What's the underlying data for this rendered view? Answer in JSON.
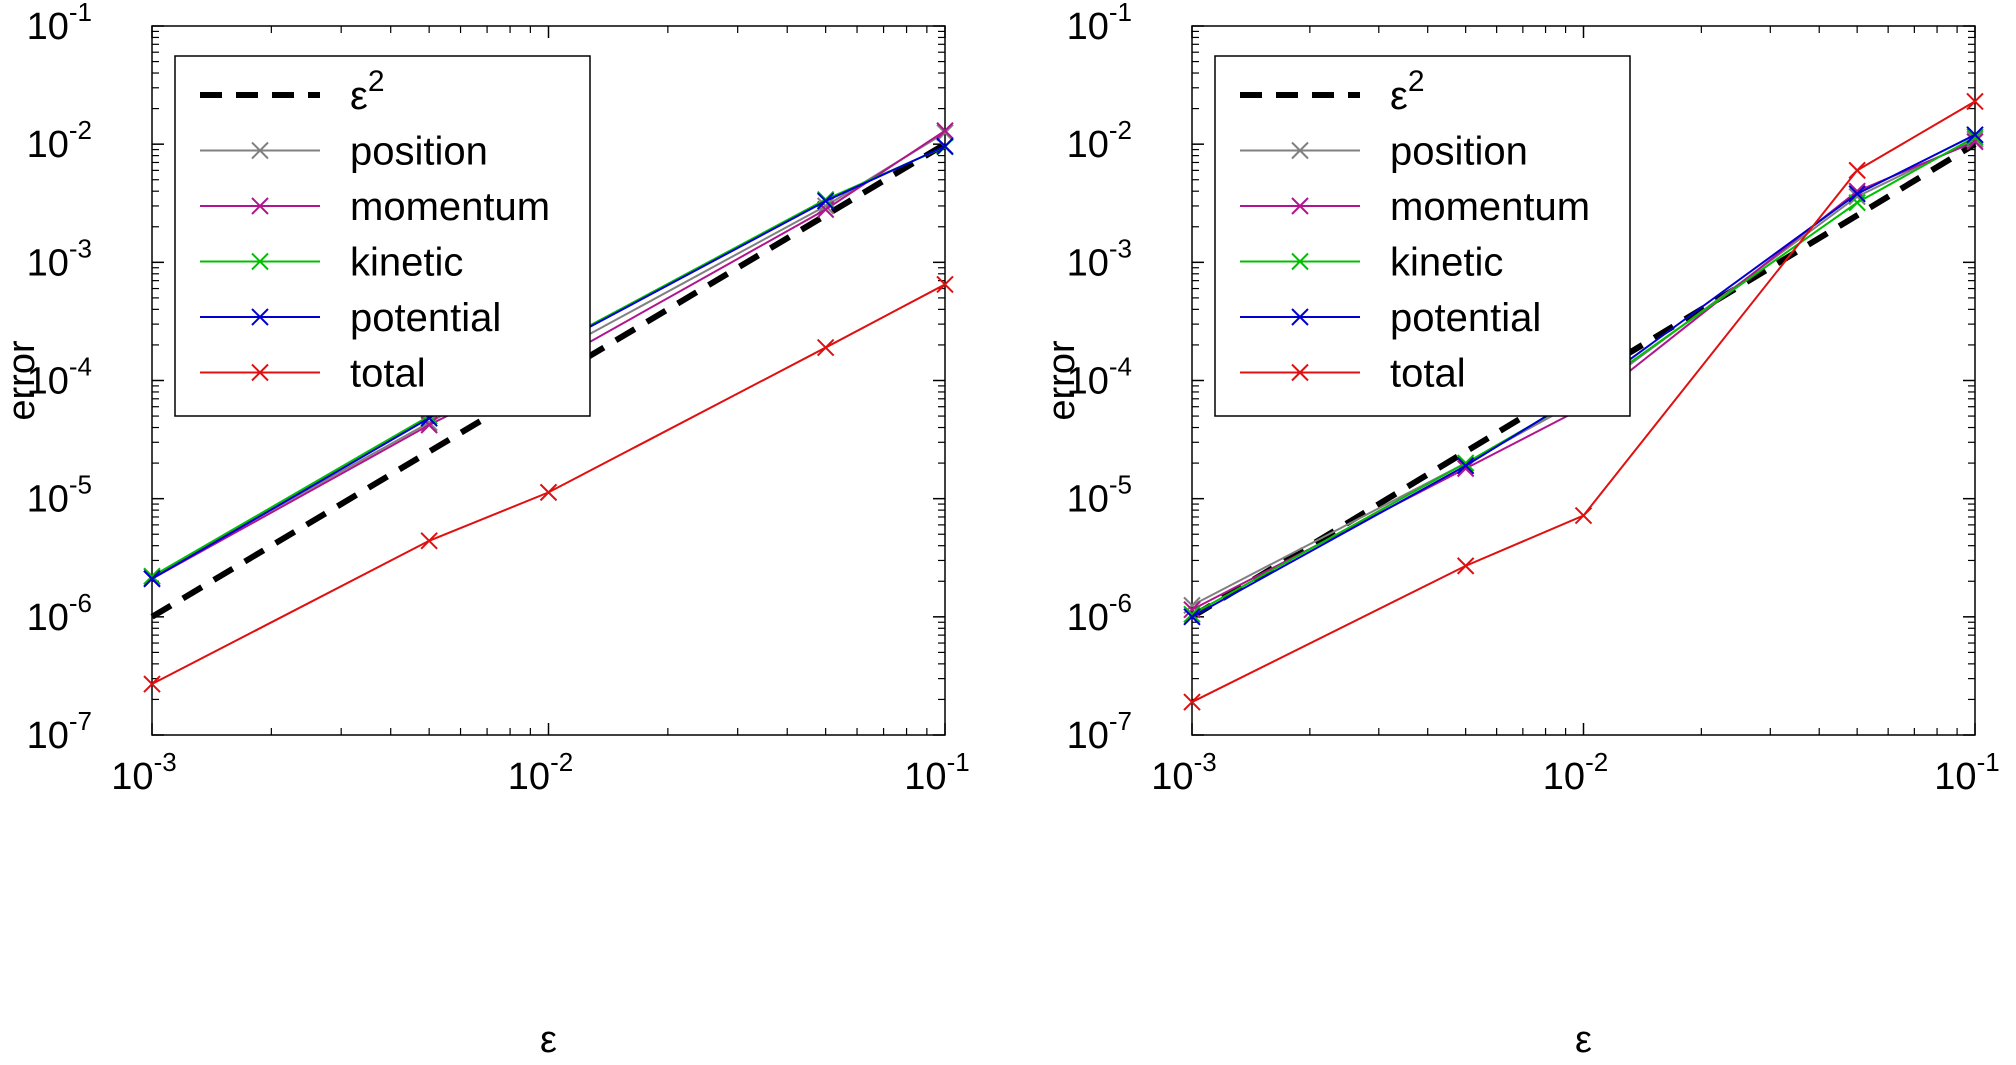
{
  "chart_data": [
    {
      "type": "line",
      "xscale": "log",
      "yscale": "log",
      "xlabel": "ε",
      "ylabel": "error",
      "xlim": [
        0.001,
        0.1
      ],
      "ylim": [
        1e-07,
        0.1
      ],
      "xticks": [
        {
          "base": "10",
          "exp": "-3"
        },
        {
          "base": "10",
          "exp": "-2"
        },
        {
          "base": "10",
          "exp": "-1"
        }
      ],
      "yticks": [
        {
          "base": "10",
          "exp": "-7"
        },
        {
          "base": "10",
          "exp": "-6"
        },
        {
          "base": "10",
          "exp": "-5"
        },
        {
          "base": "10",
          "exp": "-4"
        },
        {
          "base": "10",
          "exp": "-3"
        },
        {
          "base": "10",
          "exp": "-2"
        },
        {
          "base": "10",
          "exp": "-1"
        }
      ],
      "legend_position": "top-left",
      "x": [
        0.001,
        0.005,
        0.01,
        0.05,
        0.1
      ],
      "series": [
        {
          "name": "ε",
          "name_sup": "2",
          "color": "#000000",
          "style": "dashed",
          "markers": false,
          "x": [
            0.001,
            0.1
          ],
          "values": [
            1e-06,
            0.01
          ]
        },
        {
          "name": "position",
          "color": "#808080",
          "style": "solid",
          "markers": true,
          "values": [
            2.2e-06,
            4.4e-05,
            0.00016,
            0.003,
            0.0125
          ]
        },
        {
          "name": "momentum",
          "color": "#b0158f",
          "style": "solid",
          "markers": true,
          "values": [
            2.1e-06,
            4.2e-05,
            0.000135,
            0.0028,
            0.013
          ]
        },
        {
          "name": "kinetic",
          "color": "#00c000",
          "style": "solid",
          "markers": true,
          "values": [
            2.2e-06,
            5e-05,
            0.00019,
            0.0034,
            0.0095
          ]
        },
        {
          "name": "potential",
          "color": "#0000d0",
          "style": "solid",
          "markers": true,
          "values": [
            2.1e-06,
            4.8e-05,
            0.000185,
            0.0033,
            0.0096
          ]
        },
        {
          "name": "total",
          "color": "#e01010",
          "style": "solid",
          "markers": true,
          "values": [
            2.7e-07,
            4.4e-06,
            1.13e-05,
            0.00019,
            0.00065
          ]
        }
      ]
    },
    {
      "type": "line",
      "xscale": "log",
      "yscale": "log",
      "xlabel": "ε",
      "ylabel": "error",
      "xlim": [
        0.001,
        0.1
      ],
      "ylim": [
        1e-07,
        0.1
      ],
      "xticks": [
        {
          "base": "10",
          "exp": "-3"
        },
        {
          "base": "10",
          "exp": "-2"
        },
        {
          "base": "10",
          "exp": "-1"
        }
      ],
      "yticks": [
        {
          "base": "10",
          "exp": "-7"
        },
        {
          "base": "10",
          "exp": "-6"
        },
        {
          "base": "10",
          "exp": "-5"
        },
        {
          "base": "10",
          "exp": "-4"
        },
        {
          "base": "10",
          "exp": "-3"
        },
        {
          "base": "10",
          "exp": "-2"
        },
        {
          "base": "10",
          "exp": "-1"
        }
      ],
      "legend_position": "top-left",
      "x": [
        0.001,
        0.005,
        0.01,
        0.05,
        0.1
      ],
      "series": [
        {
          "name": "ε",
          "name_sup": "2",
          "color": "#000000",
          "style": "dashed",
          "markers": false,
          "x": [
            0.001,
            0.1
          ],
          "values": [
            1e-06,
            0.01
          ]
        },
        {
          "name": "position",
          "color": "#808080",
          "style": "solid",
          "markers": true,
          "values": [
            1.25e-06,
            2e-05,
            7e-05,
            0.0036,
            0.011
          ]
        },
        {
          "name": "momentum",
          "color": "#b0158f",
          "style": "solid",
          "markers": true,
          "values": [
            1.15e-06,
            1.8e-05,
            5.9e-05,
            0.004,
            0.0105
          ]
        },
        {
          "name": "kinetic",
          "color": "#00c000",
          "style": "solid",
          "markers": true,
          "values": [
            1.05e-06,
            2e-05,
            7.5e-05,
            0.0032,
            0.0115
          ]
        },
        {
          "name": "potential",
          "color": "#0000d0",
          "style": "solid",
          "markers": true,
          "values": [
            1e-06,
            1.9e-05,
            7.8e-05,
            0.0038,
            0.012
          ]
        },
        {
          "name": "total",
          "color": "#e01010",
          "style": "solid",
          "markers": true,
          "values": [
            1.9e-07,
            2.7e-06,
            7.2e-06,
            0.006,
            0.023
          ]
        }
      ]
    }
  ]
}
